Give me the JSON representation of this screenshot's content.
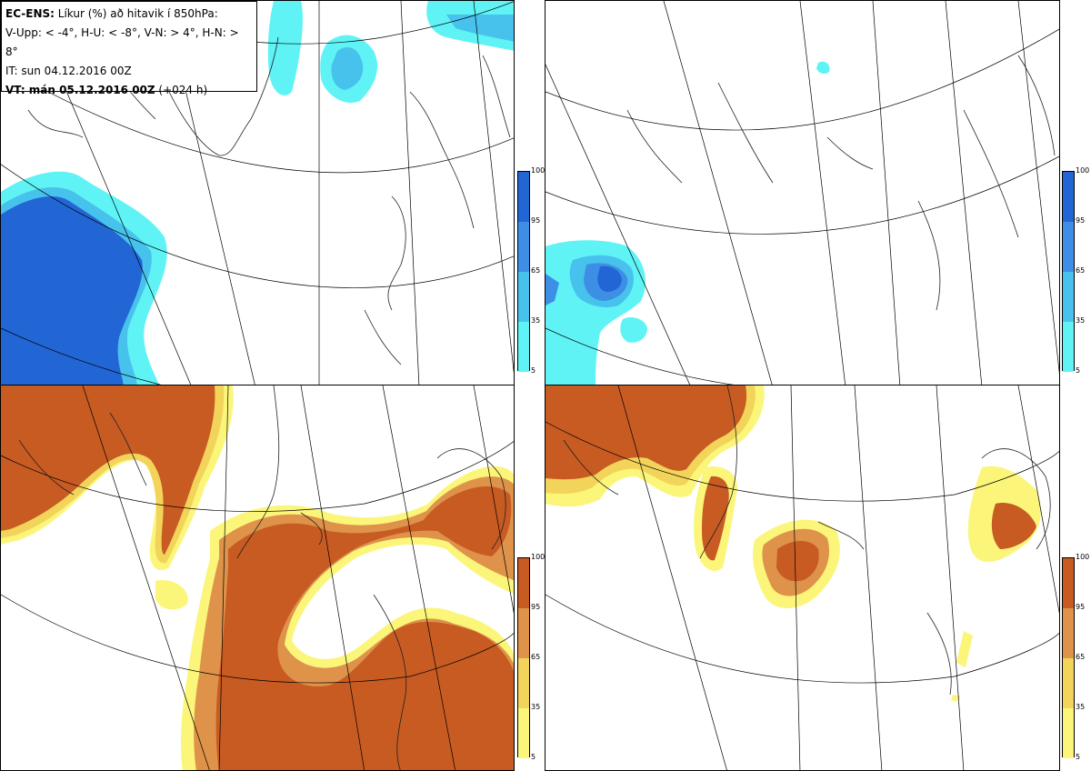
{
  "legend": {
    "line1_bold": "EC-ENS:",
    "line1_rest": " Líkur (%) að hitavik í 850hPa:",
    "line2": "V-Upp: < -4°, H-U: < -8°, V-N: > 4°, H-N: > 8°",
    "line3": "IT: sun 04.12.2016 00Z",
    "line4_bold": "VT: mán 05.12.2016 00Z",
    "line4_rest": " (+024 h)"
  },
  "panels": [
    {
      "id": "top-left",
      "label": "V-Upp",
      "palette": "blue"
    },
    {
      "id": "top-right",
      "label": "H-U",
      "palette": "blue"
    },
    {
      "id": "bottom-left",
      "label": "V-N",
      "palette": "orange"
    },
    {
      "id": "bottom-right",
      "label": "H-N",
      "palette": "orange"
    }
  ],
  "colorbar_ticks": [
    "100",
    "95",
    "65",
    "35",
    "5"
  ],
  "colors": {
    "blue_scale": [
      "#5ff3f5",
      "#47c2ec",
      "#3d8fe6",
      "#2266d6"
    ],
    "orange_scale": [
      "#fbf67a",
      "#f2d45a",
      "#de924a",
      "#c75b22"
    ]
  }
}
